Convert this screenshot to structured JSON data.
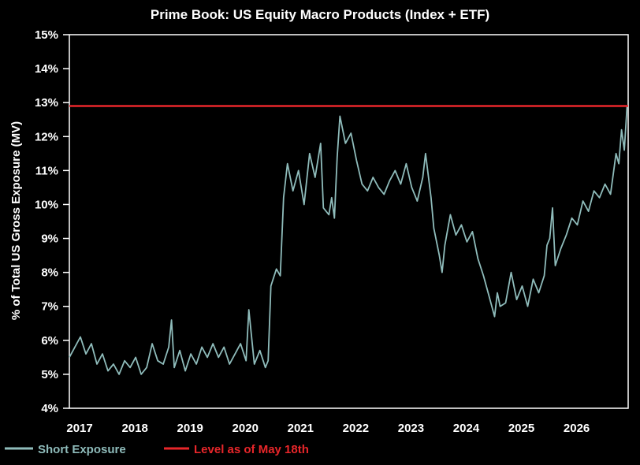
{
  "chart_data": {
    "type": "line",
    "title": "Prime Book: US Equity Macro Products (Index + ETF)",
    "xlabel": "",
    "ylabel": "% of Total US Gross Exposure (MV)",
    "x_ticks": [
      "2017",
      "2018",
      "2019",
      "2020",
      "2021",
      "2022",
      "2023",
      "2024",
      "2025",
      "2026"
    ],
    "y_ticks": [
      "4%",
      "5%",
      "6%",
      "7%",
      "8%",
      "9%",
      "10%",
      "11%",
      "12%",
      "13%",
      "14%",
      "15%"
    ],
    "xlim": [
      2016.3,
      2026.42
    ],
    "ylim": [
      4,
      15
    ],
    "grid": false,
    "legend_position": "bottom-left",
    "series": [
      {
        "name": "Short Exposure",
        "color": "#8fbcbb",
        "points": [
          [
            2016.3,
            5.5
          ],
          [
            2016.4,
            5.8
          ],
          [
            2016.5,
            6.1
          ],
          [
            2016.6,
            5.6
          ],
          [
            2016.7,
            5.9
          ],
          [
            2016.8,
            5.3
          ],
          [
            2016.9,
            5.6
          ],
          [
            2017.0,
            5.1
          ],
          [
            2017.1,
            5.3
          ],
          [
            2017.2,
            5.0
          ],
          [
            2017.3,
            5.4
          ],
          [
            2017.4,
            5.2
          ],
          [
            2017.5,
            5.5
          ],
          [
            2017.6,
            5.0
          ],
          [
            2017.7,
            5.2
          ],
          [
            2017.8,
            5.9
          ],
          [
            2017.9,
            5.4
          ],
          [
            2018.0,
            5.3
          ],
          [
            2018.1,
            5.8
          ],
          [
            2018.15,
            6.6
          ],
          [
            2018.2,
            5.2
          ],
          [
            2018.3,
            5.7
          ],
          [
            2018.4,
            5.1
          ],
          [
            2018.5,
            5.6
          ],
          [
            2018.6,
            5.3
          ],
          [
            2018.7,
            5.8
          ],
          [
            2018.8,
            5.5
          ],
          [
            2018.9,
            5.9
          ],
          [
            2019.0,
            5.5
          ],
          [
            2019.1,
            5.8
          ],
          [
            2019.2,
            5.3
          ],
          [
            2019.3,
            5.6
          ],
          [
            2019.4,
            5.9
          ],
          [
            2019.5,
            5.4
          ],
          [
            2019.55,
            6.9
          ],
          [
            2019.65,
            5.3
          ],
          [
            2019.75,
            5.7
          ],
          [
            2019.85,
            5.2
          ],
          [
            2019.9,
            5.4
          ],
          [
            2019.95,
            7.6
          ],
          [
            2020.05,
            8.1
          ],
          [
            2020.12,
            7.9
          ],
          [
            2020.18,
            10.2
          ],
          [
            2020.25,
            11.2
          ],
          [
            2020.35,
            10.4
          ],
          [
            2020.45,
            11.0
          ],
          [
            2020.55,
            10.0
          ],
          [
            2020.65,
            11.5
          ],
          [
            2020.75,
            10.8
          ],
          [
            2020.85,
            11.8
          ],
          [
            2020.9,
            9.9
          ],
          [
            2021.0,
            9.7
          ],
          [
            2021.05,
            10.2
          ],
          [
            2021.1,
            9.6
          ],
          [
            2021.15,
            11.4
          ],
          [
            2021.2,
            12.6
          ],
          [
            2021.3,
            11.8
          ],
          [
            2021.4,
            12.1
          ],
          [
            2021.5,
            11.3
          ],
          [
            2021.6,
            10.6
          ],
          [
            2021.7,
            10.4
          ],
          [
            2021.8,
            10.8
          ],
          [
            2021.9,
            10.5
          ],
          [
            2022.0,
            10.3
          ],
          [
            2022.1,
            10.7
          ],
          [
            2022.2,
            11.0
          ],
          [
            2022.3,
            10.6
          ],
          [
            2022.4,
            11.2
          ],
          [
            2022.5,
            10.5
          ],
          [
            2022.6,
            10.1
          ],
          [
            2022.7,
            10.8
          ],
          [
            2022.75,
            11.5
          ],
          [
            2022.85,
            10.2
          ],
          [
            2022.9,
            9.3
          ],
          [
            2023.0,
            8.5
          ],
          [
            2023.05,
            8.0
          ],
          [
            2023.1,
            8.8
          ],
          [
            2023.2,
            9.7
          ],
          [
            2023.3,
            9.1
          ],
          [
            2023.4,
            9.4
          ],
          [
            2023.5,
            8.9
          ],
          [
            2023.6,
            9.2
          ],
          [
            2023.7,
            8.4
          ],
          [
            2023.8,
            7.9
          ],
          [
            2023.9,
            7.3
          ],
          [
            2024.0,
            6.7
          ],
          [
            2024.05,
            7.4
          ],
          [
            2024.1,
            7.0
          ],
          [
            2024.2,
            7.1
          ],
          [
            2024.3,
            8.0
          ],
          [
            2024.4,
            7.2
          ],
          [
            2024.5,
            7.6
          ],
          [
            2024.6,
            7.0
          ],
          [
            2024.7,
            7.8
          ],
          [
            2024.8,
            7.4
          ],
          [
            2024.9,
            7.9
          ],
          [
            2024.95,
            8.8
          ],
          [
            2025.0,
            9.0
          ],
          [
            2025.05,
            9.9
          ],
          [
            2025.1,
            8.2
          ],
          [
            2025.2,
            8.7
          ],
          [
            2025.3,
            9.1
          ],
          [
            2025.4,
            9.6
          ],
          [
            2025.5,
            9.4
          ],
          [
            2025.6,
            10.1
          ],
          [
            2025.7,
            9.8
          ],
          [
            2025.8,
            10.4
          ],
          [
            2025.9,
            10.2
          ],
          [
            2026.0,
            10.6
          ],
          [
            2026.1,
            10.3
          ],
          [
            2026.15,
            10.9
          ],
          [
            2026.2,
            11.5
          ],
          [
            2026.25,
            11.2
          ],
          [
            2026.3,
            12.2
          ],
          [
            2026.35,
            11.6
          ],
          [
            2026.4,
            12.9
          ]
        ]
      },
      {
        "name": "Level as of May 18th",
        "color": "#e8262a",
        "y": 12.9
      }
    ]
  }
}
